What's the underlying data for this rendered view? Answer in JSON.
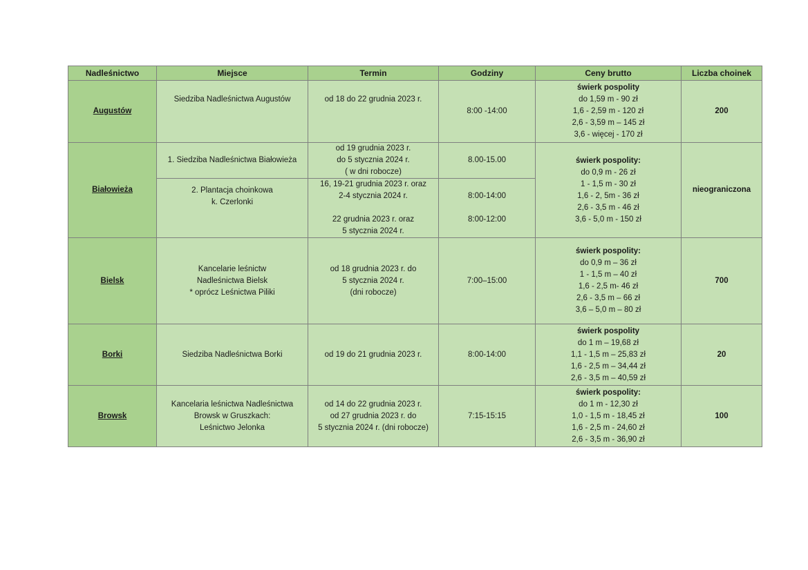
{
  "headers": [
    "Nadleśnictwo",
    "Miejsce",
    "Termin",
    "Godziny",
    "Ceny brutto",
    "Liczba choinek"
  ],
  "colors": {
    "header_bg": "#a9d18e",
    "first_col_bg": "#a9d18e",
    "cell_bg": "#c5e0b4",
    "border": "#7f7f7f"
  },
  "rows": [
    {
      "nadlesnictwo": "Augustów",
      "count": "200",
      "prices": [
        "świerk pospolity",
        "do 1,59 m - 90 zł",
        "1,6 - 2,59 m - 120 zł",
        "2,6 - 3,59 m – 145 zł",
        "3,6 - więcej - 170 zł"
      ],
      "subrows": [
        {
          "miejsce": [
            "Siedziba Nadleśnictwa Augustów",
            "",
            ""
          ],
          "termin": [
            "od 18 do 22 grudnia 2023 r.",
            "",
            ""
          ],
          "godziny": [
            "8:00 -14:00"
          ]
        }
      ]
    },
    {
      "nadlesnictwo": "Białowieża",
      "count": "nieograniczona",
      "prices": [
        "świerk pospolity:",
        "do 0,9 m - 26 zł",
        "1 - 1,5 m - 30 zł",
        "1,6 - 2, 5m - 36 zł",
        "2,6 - 3,5 m - 46 zł",
        "3,6 - 5,0 m - 150 zł"
      ],
      "subrows": [
        {
          "miejsce": [
            "1. Siedziba Nadleśnictwa Białowieża"
          ],
          "termin": [
            "od 19 grudnia 2023 r.",
            "do 5 stycznia 2024 r.",
            "( w dni robocze)"
          ],
          "godziny": [
            "8.00-15.00"
          ]
        },
        {
          "miejsce": [
            "2. Plantacja choinkowa",
            "k. Czerlonki",
            "",
            ""
          ],
          "termin": [
            "16, 19-21 grudnia 2023 r. oraz",
            "2-4 stycznia 2024 r.",
            "",
            "22 grudnia 2023 r. oraz",
            "5 stycznia 2024 r."
          ],
          "godziny": [
            "",
            "8:00-14:00",
            "",
            "8:00-12:00",
            ""
          ]
        }
      ]
    },
    {
      "nadlesnictwo": "Bielsk",
      "count": "700",
      "prices": [
        "świerk pospolity:",
        "do 0,9 m – 36 zł",
        "1 - 1,5 m – 40 zł",
        "1,6 - 2,5 m- 46 zł",
        "2,6 - 3,5 m – 66 zł",
        "3,6 – 5,0 m – 80 zł"
      ],
      "subrows": [
        {
          "miejsce": [
            "Kancelarie leśnictw",
            "Nadleśnictwa Bielsk",
            "* oprócz Leśnictwa Piliki"
          ],
          "termin": [
            "od 18 grudnia 2023 r. do",
            "5 stycznia 2024 r.",
            "(dni robocze)"
          ],
          "godziny": [
            "7:00–15:00"
          ]
        }
      ]
    },
    {
      "nadlesnictwo": "Borki",
      "count": "20",
      "prices": [
        "świerk pospolity",
        "do 1 m – 19,68 zł",
        "1,1 - 1,5 m – 25,83 zł",
        "1,6 - 2,5 m – 34,44 zł",
        "2,6 - 3,5 m – 40,59 zł"
      ],
      "subrows": [
        {
          "miejsce": [
            "Siedziba Nadleśnictwa Borki"
          ],
          "termin": [
            "od 19 do 21 grudnia 2023 r."
          ],
          "godziny": [
            "8:00-14:00"
          ]
        }
      ]
    },
    {
      "nadlesnictwo": "Browsk",
      "count": "100",
      "prices": [
        "świerk pospolity:",
        "do 1 m - 12,30 zł",
        "1,0 - 1,5 m - 18,45 zł",
        "1,6 - 2,5 m - 24,60 zł",
        "2,6 - 3,5 m - 36,90 zł"
      ],
      "subrows": [
        {
          "miejsce": [
            "Kancelaria leśnictwa Nadleśnictwa",
            "Browsk w Gruszkach:",
            "Leśnictwo Jelonka"
          ],
          "termin": [
            "od 14 do 22 grudnia 2023 r.",
            "od 27 grudnia 2023 r. do",
            "5 stycznia 2024 r. (dni robocze)"
          ],
          "godziny": [
            "7:15-15:15"
          ]
        }
      ]
    }
  ]
}
